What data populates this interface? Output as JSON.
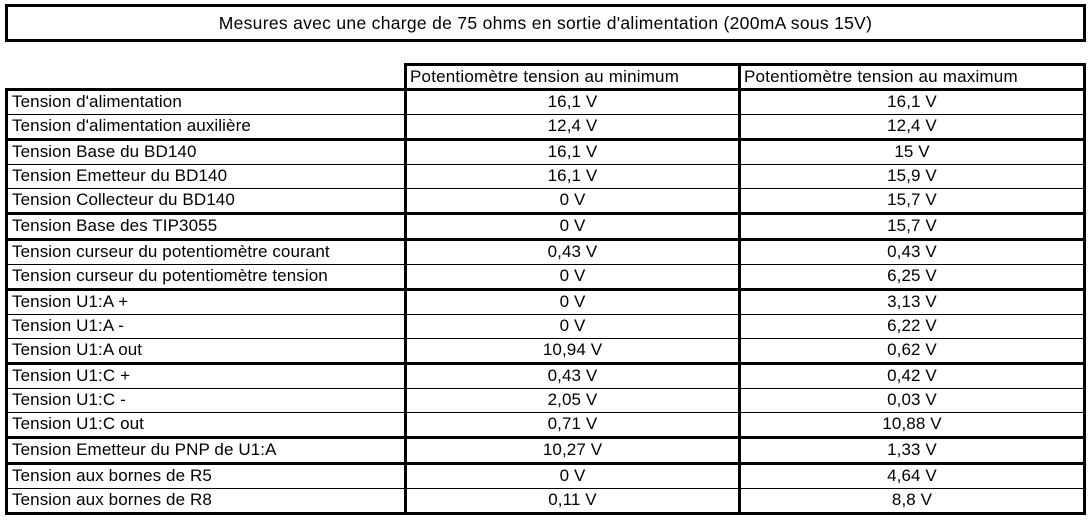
{
  "title": "Mesures avec une charge de 75 ohms en sortie d'alimentation (200mA sous 15V)",
  "table": {
    "columns": {
      "min": "Potentiomètre tension au minimum",
      "max": "Potentiomètre tension au maximum"
    },
    "rows": [
      {
        "label": "Tension d'alimentation",
        "min": "16,1 V",
        "max": "16,1 V"
      },
      {
        "label": "Tension d'alimentation auxilière",
        "min": "12,4 V",
        "max": "12,4 V"
      },
      {
        "label": "Tension Base du BD140",
        "min": "16,1 V",
        "max": "15 V"
      },
      {
        "label": "Tension Emetteur du BD140",
        "min": "16,1 V",
        "max": "15,9 V"
      },
      {
        "label": "Tension Collecteur du BD140",
        "min": "0 V",
        "max": "15,7 V"
      },
      {
        "label": "Tension Base des TIP3055",
        "min": "0 V",
        "max": "15,7 V"
      },
      {
        "label": "Tension curseur du potentiomètre courant",
        "min": "0,43 V",
        "max": "0,43 V"
      },
      {
        "label": "Tension curseur du potentiomètre tension",
        "min": "0 V",
        "max": "6,25 V"
      },
      {
        "label": "Tension U1:A +",
        "min": "0 V",
        "max": "3,13 V"
      },
      {
        "label": "Tension U1:A -",
        "min": "0 V",
        "max": "6,22 V"
      },
      {
        "label": "Tension U1:A out",
        "min": "10,94 V",
        "max": "0,62 V"
      },
      {
        "label": "Tension U1:C +",
        "min": "0,43 V",
        "max": "0,42 V"
      },
      {
        "label": "Tension U1:C -",
        "min": "2,05 V",
        "max": "0,03 V"
      },
      {
        "label": "Tension U1:C out",
        "min": "0,71 V",
        "max": "10,88 V"
      },
      {
        "label": "Tension Emetteur du PNP de U1:A",
        "min": "10,27 V",
        "max": "1,33 V"
      },
      {
        "label": "Tension aux bornes de R5",
        "min": "0 V",
        "max": "4,64 V"
      },
      {
        "label": "Tension aux bornes de R8",
        "min": "0,11 V",
        "max": "8,8 V"
      }
    ]
  },
  "colors": {
    "border": "#000000",
    "background": "#ffffff",
    "text": "#000000"
  }
}
